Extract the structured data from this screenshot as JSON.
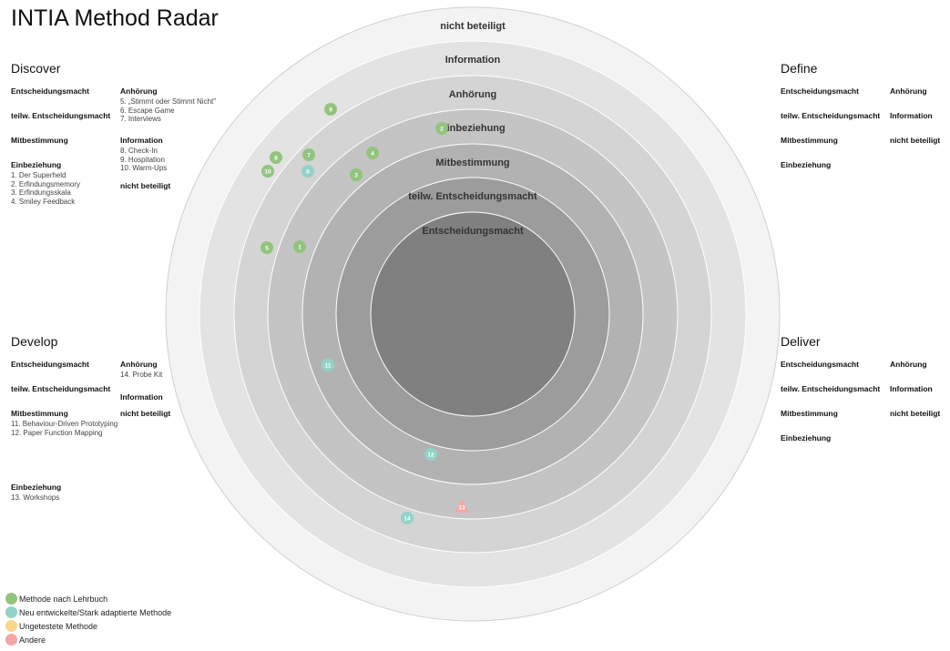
{
  "title": "INTIA Method Radar",
  "rings": [
    {
      "label": "nicht beteiligt",
      "color": "#f3f3f3"
    },
    {
      "label": "Information",
      "color": "#e3e3e3"
    },
    {
      "label": "Anhörung",
      "color": "#d4d4d4"
    },
    {
      "label": "Einbeziehung",
      "color": "#c4c4c4"
    },
    {
      "label": "Mitbestimmung",
      "color": "#b2b2b2"
    },
    {
      "label": "teilw. Entscheidungsmacht",
      "color": "#9c9c9c"
    },
    {
      "label": "Entscheidungsmacht",
      "color": "#808080"
    }
  ],
  "quadrants": [
    {
      "name": "Discover",
      "left": [
        {
          "title": "Entscheidungsmacht",
          "items": []
        },
        {
          "title": "teilw. Entscheidungsmacht",
          "items": []
        },
        {
          "title": "Mitbestimmung",
          "items": []
        },
        {
          "title": "Einbeziehung",
          "items": [
            "1. Der Superheld",
            "2. Erfindungsmemory",
            "3. Erfindungsskala",
            "4. Smiley Feedback"
          ]
        }
      ],
      "right": [
        {
          "title": "Anhörung",
          "items": [
            "5. „Stimmt oder Stimmt Nicht\"",
            "6. Escape Game",
            "7. Interviews"
          ]
        },
        {
          "title": "Information",
          "items": [
            "8. Check-In",
            "9. Hospitation",
            "10. Warm-Ups"
          ]
        },
        {
          "title": "nicht beteiligt",
          "items": []
        }
      ]
    },
    {
      "name": "Define",
      "left": [
        {
          "title": "Entscheidungsmacht",
          "items": []
        },
        {
          "title": "teilw. Entscheidungsmacht",
          "items": []
        },
        {
          "title": "Mitbestimmung",
          "items": []
        },
        {
          "title": "Einbeziehung",
          "items": []
        }
      ],
      "right": [
        {
          "title": "Anhörung",
          "items": []
        },
        {
          "title": "Information",
          "items": []
        },
        {
          "title": "nicht beteiligt",
          "items": []
        }
      ]
    },
    {
      "name": "Develop",
      "left": [
        {
          "title": "Entscheidungsmacht",
          "items": []
        },
        {
          "title": "teilw. Entscheidungsmacht",
          "items": []
        },
        {
          "title": "Mitbestimmung",
          "items": [
            "11. Behaviour-Driven Prototyping",
            "12. Paper Function Mapping"
          ]
        },
        {
          "title": "Einbeziehung",
          "items": [
            "13. Workshops"
          ]
        }
      ],
      "right": [
        {
          "title": "Anhörung",
          "items": [
            "14. Probe Kit"
          ]
        },
        {
          "title": "Information",
          "items": []
        },
        {
          "title": "nicht beteiligt",
          "items": []
        }
      ]
    },
    {
      "name": "Deliver",
      "left": [
        {
          "title": "Entscheidungsmacht",
          "items": []
        },
        {
          "title": "teilw. Entscheidungsmacht",
          "items": []
        },
        {
          "title": "Mitbestimmung",
          "items": []
        },
        {
          "title": "Einbeziehung",
          "items": []
        }
      ],
      "right": [
        {
          "title": "Anhörung",
          "items": []
        },
        {
          "title": "Information",
          "items": []
        },
        {
          "title": "nicht beteiligt",
          "items": []
        }
      ]
    }
  ],
  "blips": [
    {
      "id": "9",
      "type": "lehrbuch"
    },
    {
      "id": "2",
      "type": "lehrbuch"
    },
    {
      "id": "8",
      "type": "lehrbuch"
    },
    {
      "id": "7",
      "type": "lehrbuch"
    },
    {
      "id": "4",
      "type": "lehrbuch"
    },
    {
      "id": "10",
      "type": "lehrbuch"
    },
    {
      "id": "6",
      "type": "neu"
    },
    {
      "id": "3",
      "type": "lehrbuch"
    },
    {
      "id": "5",
      "type": "lehrbuch"
    },
    {
      "id": "1",
      "type": "lehrbuch"
    },
    {
      "id": "11",
      "type": "neu"
    },
    {
      "id": "12",
      "type": "neu"
    },
    {
      "id": "13",
      "type": "andere"
    },
    {
      "id": "14",
      "type": "neu"
    }
  ],
  "legend": [
    {
      "key": "lehrbuch",
      "label": "Methode nach Lehrbuch",
      "color": "#93c47d"
    },
    {
      "key": "neu",
      "label": "Neu entwickelte/Stark adaptierte Methode",
      "color": "#93d2c8"
    },
    {
      "key": "ungetestet",
      "label": "Ungetestete Methode",
      "color": "#fbd78a"
    },
    {
      "key": "andere",
      "label": "Andere",
      "color": "#f4a6a6"
    }
  ]
}
